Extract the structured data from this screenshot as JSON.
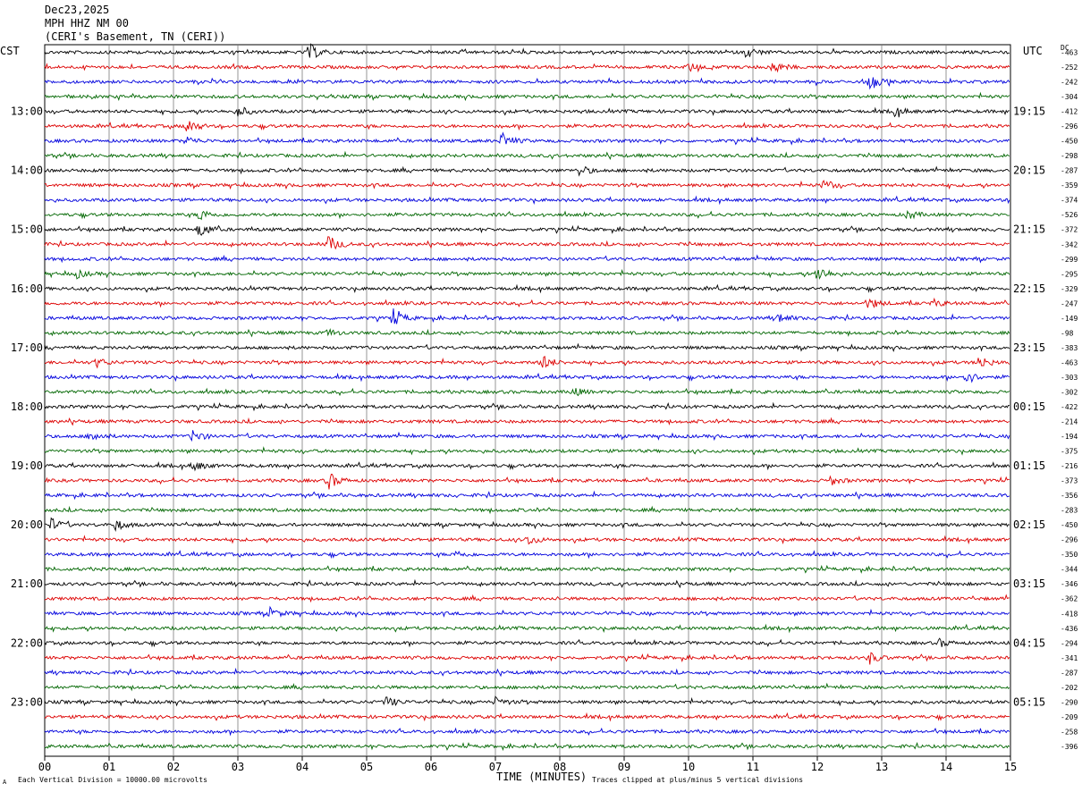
{
  "header": {
    "date": "Dec23,2025",
    "station": "MPH HHZ NM 00",
    "location": "(CERI's Basement, TN (CERI))"
  },
  "left_zone_label": "CST",
  "right_zone_label": "UTC",
  "dc_label": "DC",
  "footer": {
    "scale_note": "Each Vertical Division = 10000.00 microvolts",
    "x_axis_title": "TIME (MINUTES)",
    "clip_note": "Traces clipped at plus/minus 5 vertical divisions",
    "corner_mark": "A"
  },
  "chart_data": {
    "type": "line",
    "title": "Dec23,2025 MPH HHZ NM 00 (CERI's Basement, TN (CERI))",
    "xlabel": "TIME (MINUTES)",
    "ylabel": "",
    "xlim": [
      0,
      15
    ],
    "x_ticks": [
      "00",
      "01",
      "02",
      "03",
      "04",
      "05",
      "06",
      "07",
      "08",
      "09",
      "10",
      "11",
      "12",
      "13",
      "14",
      "15"
    ],
    "left_time_labels": [
      "13:00",
      "14:00",
      "15:00",
      "16:00",
      "17:00",
      "18:00",
      "19:00",
      "20:00",
      "21:00",
      "22:00",
      "23:00"
    ],
    "right_time_labels": [
      "19:15",
      "20:15",
      "21:15",
      "22:15",
      "23:15",
      "00:15",
      "01:15",
      "02:15",
      "03:15",
      "04:15",
      "05:15"
    ],
    "trace_colors": [
      "#000000",
      "#dd0000",
      "#0000dd",
      "#006600"
    ],
    "trace_count": 48,
    "dc_offsets": [
      -463,
      -252,
      -242,
      -304,
      -412,
      -296,
      -450,
      -298,
      -287,
      -359,
      -374,
      -526,
      -372,
      -342,
      -299,
      -295,
      -329,
      -247,
      -149,
      -98,
      -383,
      -463,
      -303,
      -302,
      -422,
      -214,
      -194,
      -375,
      -216,
      -373,
      -356,
      -283,
      -450,
      -296,
      -350,
      -344,
      -346,
      -362,
      -418,
      -436,
      -294,
      -341,
      -287,
      -202,
      -290,
      -209,
      -258,
      -396
    ],
    "events": [
      {
        "trace": 0,
        "minute": 4.1,
        "amp": 1.0
      },
      {
        "trace": 0,
        "minute": 10.9,
        "amp": 0.6
      },
      {
        "trace": 1,
        "minute": 11.3,
        "amp": 0.7
      },
      {
        "trace": 1,
        "minute": 10.0,
        "amp": 0.5
      },
      {
        "trace": 2,
        "minute": 12.8,
        "amp": 1.0
      },
      {
        "trace": 4,
        "minute": 3.0,
        "amp": 0.6
      },
      {
        "trace": 4,
        "minute": 13.2,
        "amp": 0.5
      },
      {
        "trace": 5,
        "minute": 2.2,
        "amp": 0.9
      },
      {
        "trace": 6,
        "minute": 7.1,
        "amp": 0.9
      },
      {
        "trace": 6,
        "minute": 2.2,
        "amp": 0.5
      },
      {
        "trace": 8,
        "minute": 8.3,
        "amp": 0.6
      },
      {
        "trace": 9,
        "minute": 12.1,
        "amp": 0.6
      },
      {
        "trace": 11,
        "minute": 2.4,
        "amp": 0.7
      },
      {
        "trace": 11,
        "minute": 13.4,
        "amp": 0.5
      },
      {
        "trace": 12,
        "minute": 2.4,
        "amp": 1.0
      },
      {
        "trace": 13,
        "minute": 4.4,
        "amp": 1.0
      },
      {
        "trace": 15,
        "minute": 12.0,
        "amp": 1.0
      },
      {
        "trace": 15,
        "minute": 0.5,
        "amp": 0.4
      },
      {
        "trace": 17,
        "minute": 12.8,
        "amp": 0.6
      },
      {
        "trace": 17,
        "minute": 13.8,
        "amp": 0.4
      },
      {
        "trace": 18,
        "minute": 5.4,
        "amp": 1.0
      },
      {
        "trace": 18,
        "minute": 11.4,
        "amp": 0.5
      },
      {
        "trace": 19,
        "minute": 4.4,
        "amp": 0.4
      },
      {
        "trace": 21,
        "minute": 7.7,
        "amp": 1.0
      },
      {
        "trace": 21,
        "minute": 14.5,
        "amp": 0.8
      },
      {
        "trace": 21,
        "minute": 0.8,
        "amp": 0.5
      },
      {
        "trace": 22,
        "minute": 14.3,
        "amp": 0.8
      },
      {
        "trace": 23,
        "minute": 8.2,
        "amp": 0.5
      },
      {
        "trace": 26,
        "minute": 0.7,
        "amp": 0.7
      },
      {
        "trace": 26,
        "minute": 2.3,
        "amp": 0.7
      },
      {
        "trace": 28,
        "minute": 2.3,
        "amp": 0.6
      },
      {
        "trace": 29,
        "minute": 4.4,
        "amp": 1.0
      },
      {
        "trace": 29,
        "minute": 12.2,
        "amp": 0.5
      },
      {
        "trace": 32,
        "minute": 0.1,
        "amp": 0.7
      },
      {
        "trace": 32,
        "minute": 1.1,
        "amp": 0.6
      },
      {
        "trace": 33,
        "minute": 7.5,
        "amp": 0.6
      },
      {
        "trace": 34,
        "minute": 6.4,
        "amp": 0.4
      },
      {
        "trace": 38,
        "minute": 3.5,
        "amp": 0.6
      },
      {
        "trace": 40,
        "minute": 13.9,
        "amp": 0.4
      },
      {
        "trace": 41,
        "minute": 12.8,
        "amp": 0.7
      },
      {
        "trace": 44,
        "minute": 5.3,
        "amp": 0.6
      },
      {
        "trace": 44,
        "minute": 7.0,
        "amp": 0.5
      }
    ]
  }
}
